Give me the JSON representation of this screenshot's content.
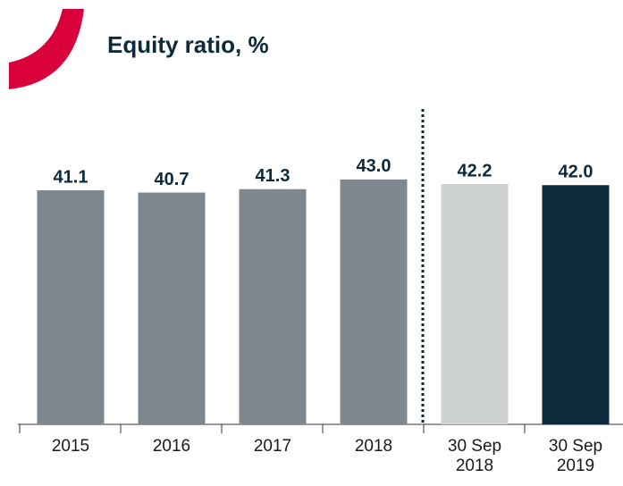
{
  "chart_data": {
    "type": "bar",
    "title": "Equity ratio, %",
    "categories": [
      "2015",
      "2016",
      "2017",
      "2018",
      "30 Sep 2018",
      "30 Sep 2019"
    ],
    "values": [
      41.1,
      40.7,
      41.3,
      43.0,
      42.2,
      42.0
    ],
    "value_labels": [
      "41.1",
      "40.7",
      "41.3",
      "43.0",
      "42.2",
      "42.0"
    ],
    "colors": [
      "#7f888e",
      "#7f888e",
      "#7f888e",
      "#7f888e",
      "#cfd2d3",
      "#0c2a3b"
    ]
  }
}
